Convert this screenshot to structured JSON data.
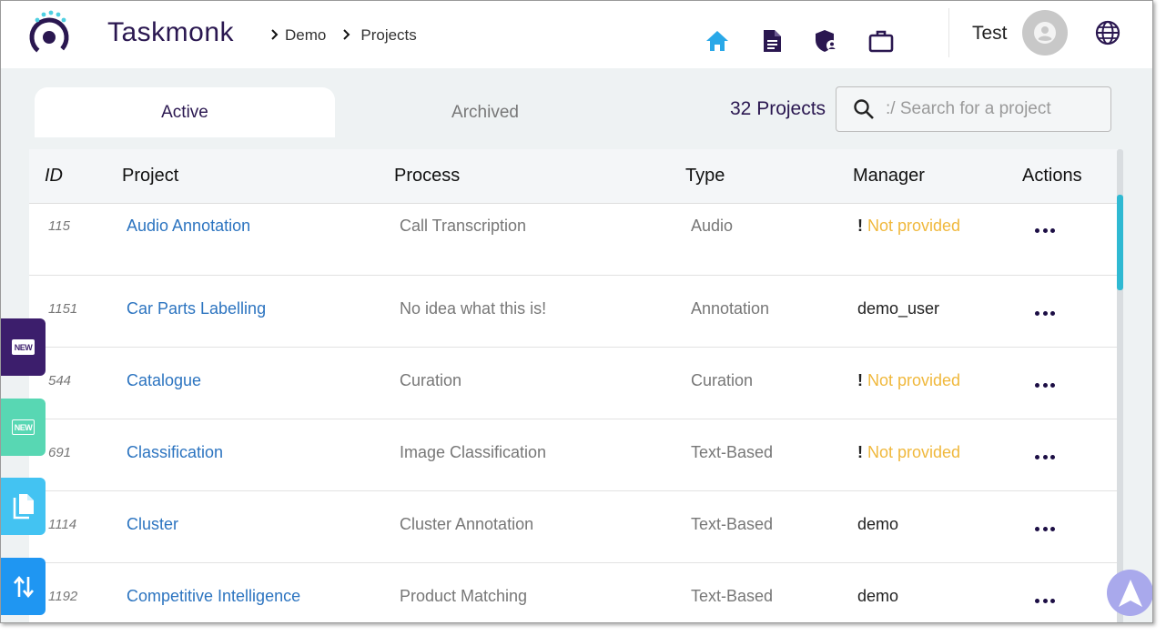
{
  "app": {
    "brand": "Taskmonk"
  },
  "breadcrumb": [
    "Demo",
    "Projects"
  ],
  "colors": {
    "brand": "#2a1750",
    "home_icon": "#29a8e8",
    "link": "#2c74c0",
    "warning": "#f0b83c",
    "accent": "#2fb9d2"
  },
  "nav": {
    "icons": [
      "home-icon",
      "document-icon",
      "shield-user-icon",
      "briefcase-icon"
    ]
  },
  "user": {
    "name": "Test"
  },
  "tabs": [
    {
      "label": "Active",
      "active": true
    },
    {
      "label": "Archived",
      "active": false
    }
  ],
  "projects_count": "32 Projects",
  "search": {
    "placeholder": ":/ Search for a project",
    "value": ""
  },
  "table": {
    "columns": [
      "ID",
      "Project",
      "Process",
      "Type",
      "Manager",
      "Actions"
    ],
    "rows": [
      {
        "id": "115",
        "project": "Audio Annotation",
        "process": "Call Transcription",
        "type": "Audio",
        "manager": "Not provided",
        "manager_missing": true
      },
      {
        "id": "1151",
        "project": "Car Parts Labelling",
        "process": "No idea what this is!",
        "type": "Annotation",
        "manager": "demo_user",
        "manager_missing": false
      },
      {
        "id": "544",
        "project": "Catalogue",
        "process": "Curation",
        "type": "Curation",
        "manager": "Not provided",
        "manager_missing": true
      },
      {
        "id": "691",
        "project": "Classification",
        "process": "Image Classification",
        "type": "Text-Based",
        "manager": "Not provided",
        "manager_missing": true
      },
      {
        "id": "1114",
        "project": "Cluster",
        "process": "Cluster Annotation",
        "type": "Text-Based",
        "manager": "demo",
        "manager_missing": false
      },
      {
        "id": "1192",
        "project": "Competitive Intelligence",
        "process": "Product Matching",
        "type": "Text-Based",
        "manager": "demo",
        "manager_missing": false
      }
    ]
  },
  "side_buttons": [
    {
      "icon": "new-badge-icon",
      "label": "NEW",
      "bg": "#3c1e6c"
    },
    {
      "icon": "new-badge-icon",
      "label": "NEW",
      "bg": "#58d7b3"
    },
    {
      "icon": "copy-icon",
      "bg": "#43c3f2"
    },
    {
      "icon": "sort-arrows-icon",
      "bg": "#1f96f2"
    }
  ]
}
